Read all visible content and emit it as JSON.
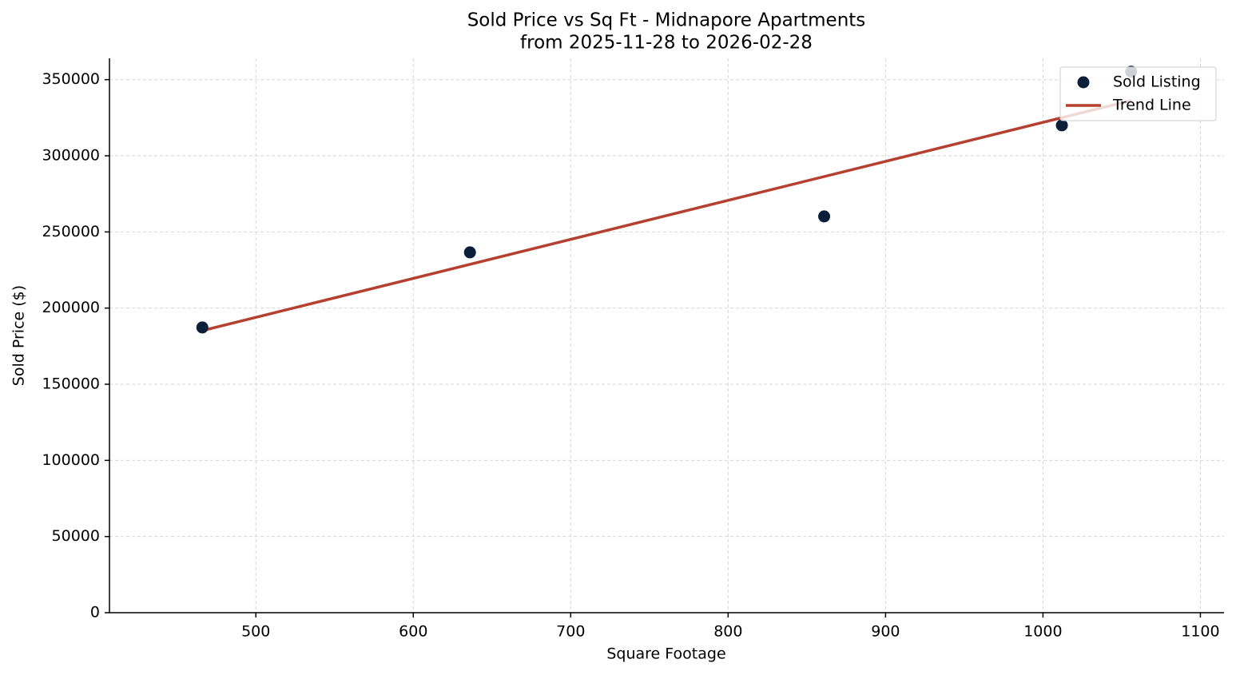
{
  "chart_data": {
    "type": "scatter",
    "title": "Sold Price vs Sq Ft - Midnapore Apartments",
    "subtitle": "from 2025-11-28 to 2026-02-28",
    "x_label": "Square Footage",
    "y_label": "Sold Price ($)",
    "series": [
      {
        "name": "Sold Listing",
        "type": "scatter",
        "color": "#0b1f3a",
        "x": [
          466,
          636,
          861,
          1012,
          1056
        ],
        "values": [
          187300,
          236600,
          260200,
          320000,
          355200
        ]
      },
      {
        "name": "Trend Line",
        "type": "line",
        "color": "#b5402f",
        "x": [
          466,
          1056
        ],
        "values": [
          185200,
          336300
        ]
      }
    ],
    "xlim": [
      407,
      1115
    ],
    "xticks": [
      500,
      600,
      700,
      800,
      900,
      1000,
      1100
    ],
    "ylim": [
      0,
      364000
    ],
    "yticks": [
      0,
      50000,
      100000,
      150000,
      200000,
      250000,
      300000,
      350000
    ],
    "grid": true,
    "legend": "upper right"
  }
}
